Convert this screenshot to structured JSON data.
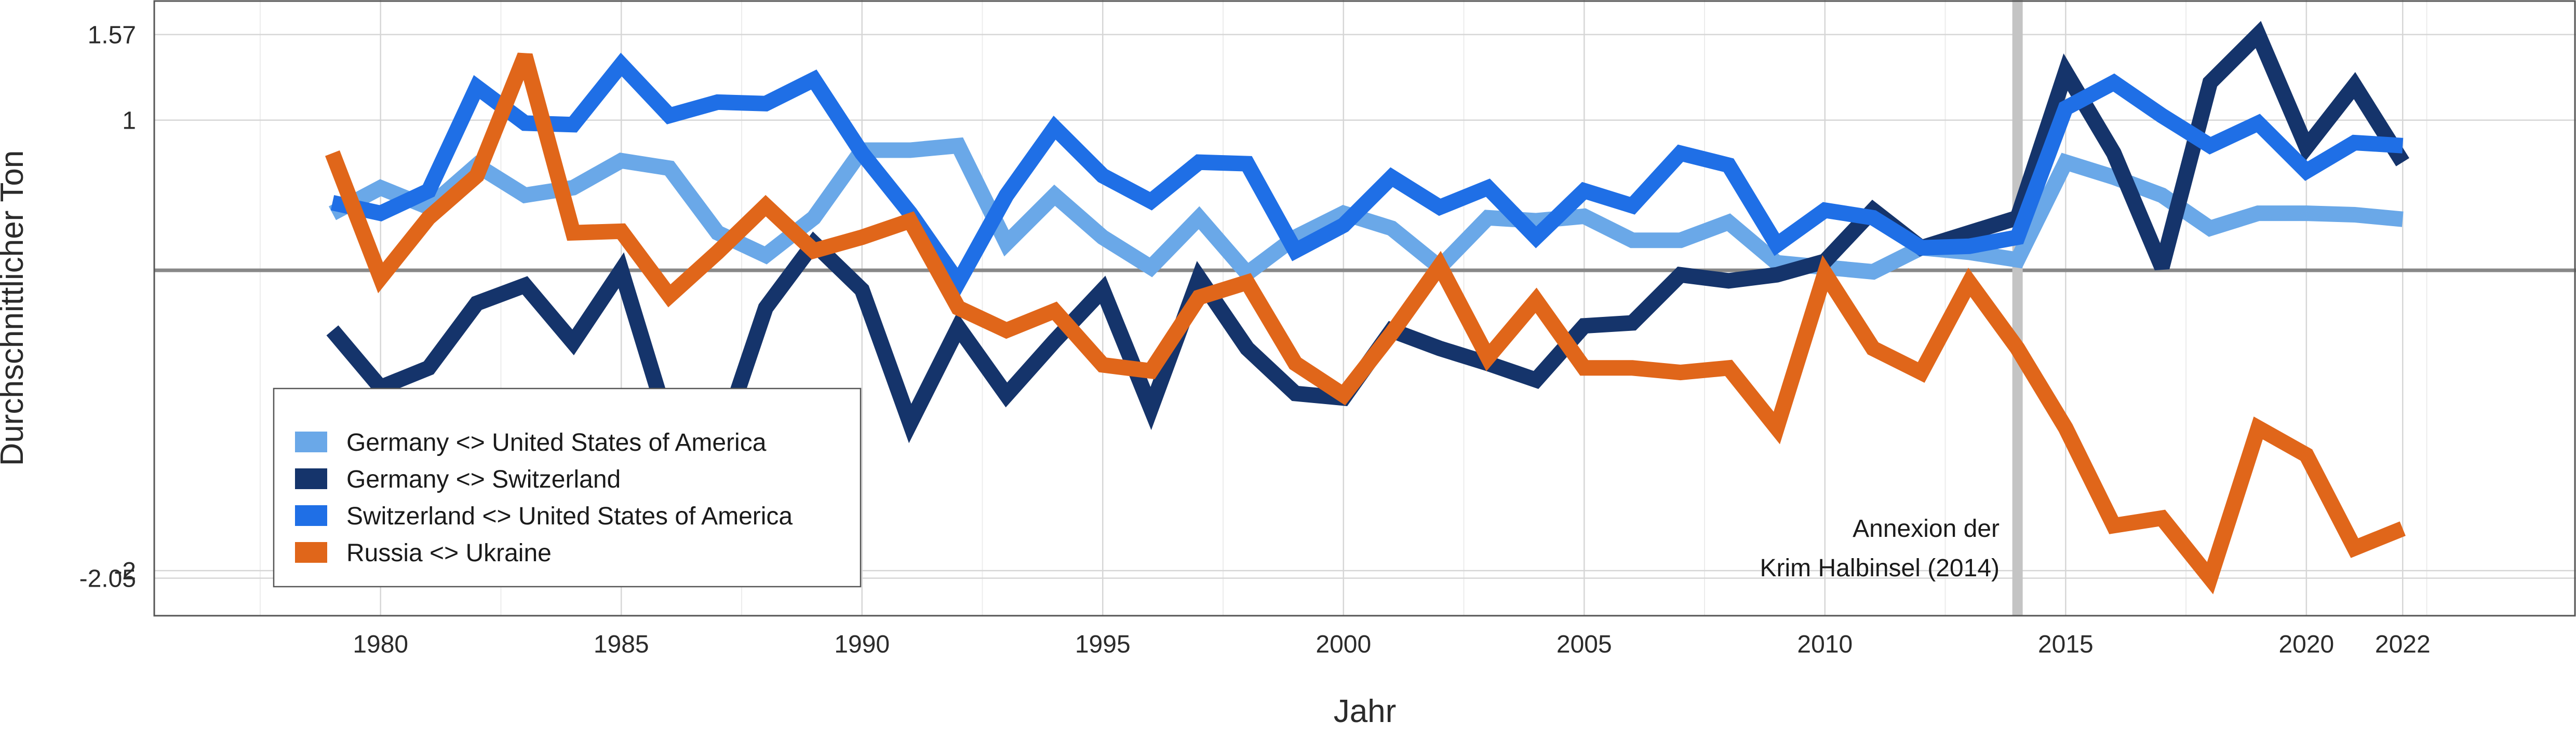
{
  "chart_data": {
    "type": "line",
    "title": "",
    "xlabel": "Jahr",
    "ylabel": "Durchschnittlicher Ton",
    "xlim": [
      1975.3,
      2025.6
    ],
    "ylim": [
      -2.3,
      1.8
    ],
    "x_ticks": [
      1980,
      1985,
      1990,
      1995,
      2000,
      2005,
      2010,
      2015,
      2020,
      2022
    ],
    "y_ticks": [
      {
        "value": 1.57,
        "label": "1.57"
      },
      {
        "value": 1,
        "label": "1"
      },
      {
        "value": -2,
        "label": "-2"
      },
      {
        "value": -2.05,
        "label": "-2.05"
      }
    ],
    "grid": true,
    "zero_line": 0,
    "event_line": {
      "x": 2014,
      "label_line1": "Annexion der",
      "label_line2": "Krim Halbinsel (2014)"
    },
    "legend_position": "bottom-left",
    "x": [
      1979,
      1980,
      1981,
      1982,
      1983,
      1984,
      1985,
      1986,
      1987,
      1988,
      1989,
      1990,
      1991,
      1992,
      1993,
      1994,
      1995,
      1996,
      1997,
      1998,
      1999,
      2000,
      2001,
      2002,
      2003,
      2004,
      2005,
      2006,
      2007,
      2008,
      2009,
      2010,
      2011,
      2012,
      2013,
      2014,
      2015,
      2016,
      2017,
      2018,
      2019,
      2020,
      2021,
      2022
    ],
    "series": [
      {
        "name": "Germany <> United States of America",
        "color": "#6aa8e8",
        "values": [
          0.38,
          0.55,
          0.42,
          0.7,
          0.5,
          0.55,
          0.73,
          0.68,
          0.25,
          0.1,
          0.35,
          0.8,
          0.8,
          0.83,
          0.18,
          0.5,
          0.22,
          0.02,
          0.35,
          -0.02,
          0.22,
          0.38,
          0.28,
          0.02,
          0.35,
          0.33,
          0.36,
          0.2,
          0.2,
          0.32,
          0.05,
          0.02,
          -0.01,
          0.15,
          0.12,
          0.07,
          0.72,
          0.62,
          0.5,
          0.28,
          0.38,
          0.38,
          0.37,
          0.34
        ]
      },
      {
        "name": "Germany <> Switzerland",
        "color": "#15346b",
        "values": [
          -0.4,
          -0.78,
          -0.65,
          -0.22,
          -0.1,
          -0.48,
          0.0,
          -1.05,
          -1.2,
          -0.25,
          0.18,
          -0.13,
          -1.02,
          -0.38,
          -0.83,
          -0.47,
          -0.13,
          -0.92,
          -0.05,
          -0.52,
          -0.82,
          -0.85,
          -0.4,
          -0.52,
          -0.62,
          -0.73,
          -0.37,
          -0.35,
          -0.03,
          -0.07,
          -0.03,
          0.06,
          0.4,
          0.15,
          0.25,
          0.35,
          1.32,
          0.78,
          0.02,
          1.25,
          1.57,
          0.82,
          1.23,
          0.72
        ]
      },
      {
        "name": "Switzerland <> United States of America",
        "color": "#1f6fe6",
        "values": [
          0.45,
          0.38,
          0.53,
          1.22,
          0.98,
          0.97,
          1.37,
          1.03,
          1.12,
          1.11,
          1.27,
          0.78,
          0.38,
          -0.08,
          0.5,
          0.95,
          0.63,
          0.46,
          0.72,
          0.71,
          0.13,
          0.3,
          0.62,
          0.42,
          0.55,
          0.22,
          0.53,
          0.43,
          0.78,
          0.7,
          0.17,
          0.4,
          0.35,
          0.15,
          0.16,
          0.22,
          1.08,
          1.25,
          1.03,
          0.83,
          0.98,
          0.66,
          0.85,
          0.83
        ]
      },
      {
        "name": "Russia <> Ukraine",
        "color": "#e0661a",
        "values": [
          0.78,
          -0.05,
          0.35,
          0.63,
          1.43,
          0.25,
          0.26,
          -0.17,
          0.12,
          0.43,
          0.13,
          0.22,
          0.33,
          -0.25,
          -0.4,
          -0.27,
          -0.63,
          -0.67,
          -0.18,
          -0.08,
          -0.62,
          -0.83,
          -0.42,
          0.03,
          -0.58,
          -0.2,
          -0.65,
          -0.65,
          -0.68,
          -0.65,
          -1.05,
          -0.02,
          -0.52,
          -0.68,
          -0.08,
          -0.52,
          -1.05,
          -1.7,
          -1.65,
          -2.05,
          -1.05,
          -1.23,
          -1.85,
          -1.72
        ]
      }
    ]
  }
}
